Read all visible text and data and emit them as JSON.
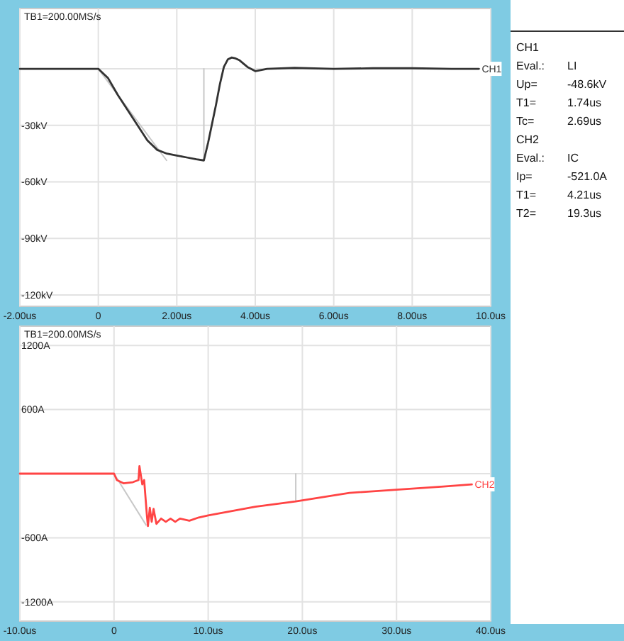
{
  "chart_data": [
    {
      "type": "line",
      "title": "TB1=200.00MS/s",
      "xlim": [
        -2,
        10
      ],
      "ylim": [
        -126,
        32
      ],
      "xticks": [
        {
          "value": -2,
          "label": "-2.00us"
        },
        0,
        {
          "value": 2,
          "label": "2.00us"
        },
        {
          "value": 4,
          "label": "4.00us"
        },
        {
          "value": 6,
          "label": "6.00us"
        },
        {
          "value": 8,
          "label": "8.00us"
        },
        {
          "value": 10,
          "label": "10.0us"
        }
      ],
      "yticks": [
        {
          "value": 0,
          "label": null
        },
        {
          "value": -30,
          "label": "-30kV"
        },
        {
          "value": -60,
          "label": "-60kV"
        },
        {
          "value": -90,
          "label": "-90kV"
        },
        {
          "value": -120,
          "label": "-120kV"
        }
      ],
      "grid": true,
      "series": [
        {
          "color": "#c8c8c8",
          "x": [
            0,
            1.74
          ],
          "values": [
            0,
            -48.6
          ]
        },
        {
          "color": "#c8c8c8",
          "x": [
            2.69,
            2.69
          ],
          "values": [
            0,
            -48.6
          ]
        },
        {
          "name": "CH1",
          "color": "#333333",
          "x": [
            -2,
            0,
            0.25,
            0.5,
            0.75,
            1,
            1.25,
            1.5,
            1.75,
            2,
            2.25,
            2.5,
            2.69,
            2.8,
            2.9,
            3,
            3.1,
            3.2,
            3.3,
            3.4,
            3.5,
            3.6,
            3.8,
            4,
            4.3,
            5,
            6,
            7,
            8,
            9,
            9.7
          ],
          "values": [
            0,
            0,
            -5,
            -14,
            -22,
            -30,
            -38,
            -43,
            -45,
            -46,
            -47,
            -48,
            -48.6,
            -39,
            -29,
            -19,
            -8,
            1,
            5,
            6,
            5.5,
            4.5,
            1,
            -1.2,
            0,
            0.5,
            0,
            0.3,
            0.3,
            0,
            0
          ]
        }
      ]
    },
    {
      "type": "line",
      "title": "TB1=200.00MS/s",
      "xlim": [
        -10,
        40
      ],
      "ylim": [
        -1380,
        1380
      ],
      "xticks": [
        {
          "value": -10,
          "label": "-10.0us"
        },
        0,
        {
          "value": 10,
          "label": "10.0us"
        },
        {
          "value": 20,
          "label": "20.0us"
        },
        {
          "value": 30,
          "label": "30.0us"
        },
        {
          "value": 40,
          "label": "40.0us"
        }
      ],
      "yticks": [
        {
          "value": 1200,
          "label": "1200A"
        },
        {
          "value": 600,
          "label": "600A"
        },
        {
          "value": 0,
          "label": null
        },
        {
          "value": -600,
          "label": "-600A"
        },
        {
          "value": -1200,
          "label": "-1200A"
        }
      ],
      "grid": true,
      "series": [
        {
          "color": "#c8c8c8",
          "x": [
            0,
            3.4
          ],
          "values": [
            0,
            -480
          ]
        },
        {
          "color": "#c8c8c8",
          "x": [
            19.3,
            19.3
          ],
          "values": [
            0,
            -260
          ]
        },
        {
          "name": "CH2",
          "color": "#ff4444",
          "x": [
            -10,
            0,
            0.3,
            1,
            2,
            2.6,
            2.7,
            3,
            3.2,
            3.5,
            3.6,
            3.8,
            4,
            4.2,
            4.5,
            5,
            5.5,
            6,
            6.5,
            7,
            8,
            9,
            10,
            15,
            19.3,
            25,
            30,
            35,
            38
          ],
          "values": [
            0,
            0,
            -60,
            -90,
            -80,
            -60,
            70,
            -100,
            -60,
            -400,
            -490,
            -320,
            -450,
            -330,
            -470,
            -420,
            -450,
            -420,
            -450,
            -420,
            -440,
            -410,
            -390,
            -310,
            -260,
            -180,
            -150,
            -120,
            -100
          ]
        }
      ]
    },
    {
      "type": "other",
      "title": "CH1",
      "annotations": [
        "Eval.:",
        "LI",
        "Up=",
        "-48.6kV",
        "T1=",
        "1.74us",
        "Tc=",
        "2.69us"
      ]
    },
    {
      "type": "other",
      "title": "CH2",
      "annotations": [
        "Eval.:",
        "IC",
        "Ip=",
        "-521.0A",
        "T1=",
        "4.21us",
        "T2=",
        "19.3us"
      ]
    }
  ]
}
